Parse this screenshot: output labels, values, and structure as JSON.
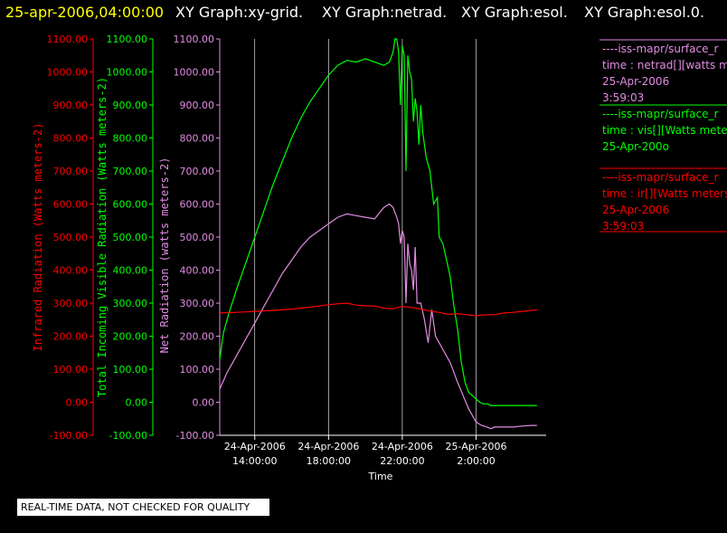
{
  "header": {
    "timestamp": "25-apr-2006,04:00:00",
    "graphs": [
      "XY Graph:xy-grid.",
      "XY Graph:netrad.",
      "XY Graph:esol.",
      "XY Graph:esol.0."
    ]
  },
  "colors": {
    "ir": "#ff0000",
    "vis": "#00ff00",
    "net": "#e28ce2",
    "header": "#ffff00",
    "grid": "#ffffff"
  },
  "legend": [
    {
      "line1": "----iss-mapr/surface_r",
      "line2": "time : netrad[][watts m",
      "line3": "25-Apr-2006",
      "line4": "3:59:03",
      "color": "#e28ce2"
    },
    {
      "line1": "----iss-mapr/surface_r",
      "line2": "time : vis[][Watts mete",
      "line3": "25-Apr-200o",
      "line4": "",
      "color": "#00ff00"
    },
    {
      "line1": "----iss-mapr/surface_r",
      "line2": "time : ir[][Watts meters",
      "line3": "25-Apr-2006",
      "line4": "3:59:03",
      "color": "#ff0000"
    }
  ],
  "disclaimer": "REAL-TIME DATA, NOT CHECKED FOR QUALITY",
  "chart_data": {
    "type": "line",
    "xlabel": "Time",
    "x_ticks": [
      {
        "hours": 14,
        "l1": "24-Apr-2006",
        "l2": "14:00:00"
      },
      {
        "hours": 18,
        "l1": "24-Apr-2006",
        "l2": "18:00:00"
      },
      {
        "hours": 22,
        "l1": "24-Apr-2006",
        "l2": "22:00:00"
      },
      {
        "hours": 26,
        "l1": "25-Apr-2006",
        "l2": "2:00:00"
      }
    ],
    "xlim_hours": [
      12.1,
      29.8
    ],
    "ylim": [
      -100,
      1100
    ],
    "y_tick_values": [
      -100,
      0,
      100,
      200,
      300,
      400,
      500,
      600,
      700,
      800,
      900,
      1000,
      1100
    ],
    "y_tick_labels": [
      "-100.00",
      "0.00",
      "100.00",
      "200.00",
      "300.00",
      "400.00",
      "500.00",
      "600.00",
      "700.00",
      "800.00",
      "900.00",
      "1000.00",
      "1100.00"
    ],
    "ylabels": {
      "ir": "Infrared Radiation (Watts meters-2)",
      "vis": "Total Incoming Visible Radiation (Watts meters-2)",
      "net": "Net Radiation (watts meters-2)"
    },
    "series": [
      {
        "name": "vis",
        "x_hours": [
          12.1,
          12.3,
          12.6,
          13.0,
          13.5,
          14.0,
          14.5,
          15.0,
          15.5,
          16.0,
          16.5,
          17.0,
          17.5,
          18.0,
          18.5,
          19.0,
          19.5,
          20.0,
          20.5,
          21.0,
          21.3,
          21.5,
          21.6,
          21.7,
          21.8,
          21.9,
          22.0,
          22.1,
          22.2,
          22.3,
          22.4,
          22.5,
          22.6,
          22.7,
          22.8,
          22.9,
          23.0,
          23.1,
          23.3,
          23.5,
          23.7,
          23.9,
          24.0,
          24.2,
          24.4,
          24.6,
          24.8,
          25.0,
          25.2,
          25.4,
          25.6,
          25.8,
          26.0,
          26.2,
          26.4,
          26.6,
          26.8,
          27.0,
          27.5,
          28.0,
          28.5,
          29.0,
          29.3
        ],
        "y": [
          130,
          210,
          270,
          340,
          420,
          500,
          580,
          660,
          730,
          800,
          860,
          910,
          950,
          990,
          1020,
          1035,
          1030,
          1040,
          1030,
          1020,
          1030,
          1060,
          1100,
          1100,
          1060,
          900,
          1080,
          1050,
          700,
          1050,
          1000,
          980,
          850,
          920,
          880,
          780,
          900,
          820,
          740,
          700,
          600,
          620,
          500,
          480,
          430,
          380,
          290,
          220,
          120,
          60,
          30,
          20,
          10,
          0,
          -5,
          -5,
          -10,
          -10,
          -10,
          -10,
          -10,
          -10,
          -10
        ]
      },
      {
        "name": "net",
        "x_hours": [
          12.1,
          12.5,
          13.0,
          13.5,
          14.0,
          14.5,
          15.0,
          15.5,
          16.0,
          16.5,
          17.0,
          17.5,
          18.0,
          18.5,
          19.0,
          19.5,
          20.0,
          20.5,
          21.0,
          21.3,
          21.5,
          21.7,
          21.8,
          21.9,
          22.0,
          22.1,
          22.2,
          22.3,
          22.4,
          22.5,
          22.6,
          22.7,
          22.8,
          23.0,
          23.2,
          23.4,
          23.6,
          23.8,
          24.0,
          24.3,
          24.6,
          25.0,
          25.3,
          25.6,
          26.0,
          26.3,
          26.6,
          26.8,
          27.0,
          27.5,
          28.0,
          28.5,
          29.0,
          29.3
        ],
        "y": [
          40,
          90,
          140,
          190,
          240,
          290,
          340,
          390,
          430,
          470,
          500,
          520,
          540,
          560,
          570,
          565,
          560,
          555,
          590,
          600,
          590,
          560,
          540,
          480,
          520,
          500,
          300,
          480,
          420,
          400,
          340,
          470,
          300,
          300,
          250,
          180,
          280,
          200,
          180,
          150,
          120,
          60,
          20,
          -20,
          -60,
          -70,
          -75,
          -80,
          -75,
          -75,
          -75,
          -72,
          -70,
          -70
        ]
      },
      {
        "name": "ir",
        "x_hours": [
          12.1,
          13,
          14,
          15,
          16,
          17,
          18,
          18.5,
          19,
          19.5,
          20,
          20.5,
          21,
          21.5,
          22,
          22.5,
          23,
          23.5,
          24,
          24.5,
          25,
          25.5,
          26,
          26.5,
          27,
          27.5,
          28,
          28.5,
          29,
          29.3
        ],
        "y": [
          270,
          272,
          275,
          278,
          282,
          288,
          295,
          298,
          300,
          294,
          292,
          291,
          285,
          283,
          290,
          287,
          282,
          276,
          272,
          266,
          268,
          265,
          262,
          265,
          265,
          270,
          272,
          275,
          278,
          280
        ]
      }
    ]
  }
}
